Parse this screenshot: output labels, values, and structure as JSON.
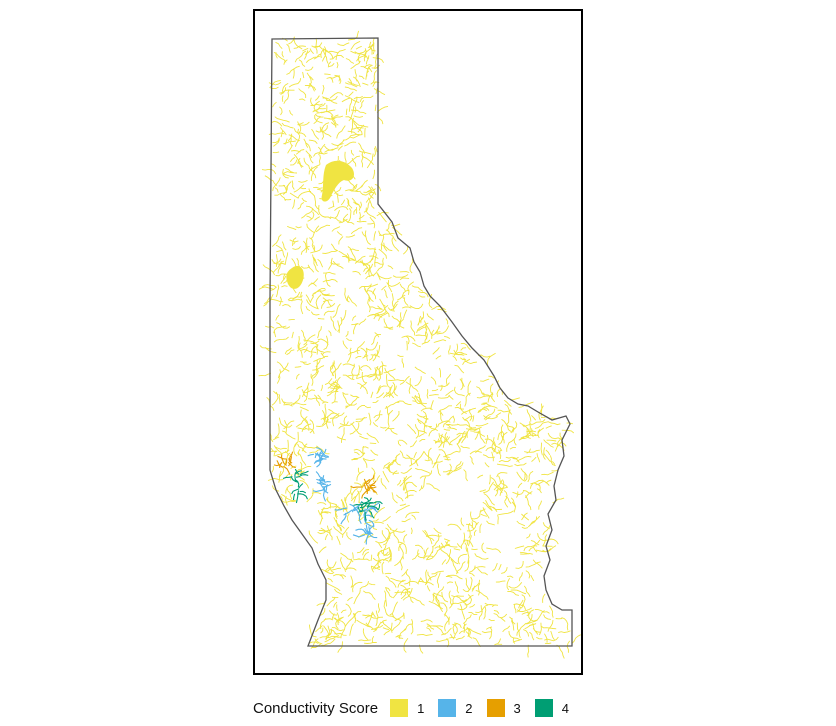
{
  "legend": {
    "title": "Conductivity Score",
    "items": [
      {
        "label": "1",
        "color": "#F0E442"
      },
      {
        "label": "2",
        "color": "#56B4E9"
      },
      {
        "label": "3",
        "color": "#E69F00"
      },
      {
        "label": "4",
        "color": "#009E73"
      }
    ]
  },
  "colors": {
    "outline": "#555555",
    "frame": "#000000",
    "lake": "#F0E442"
  }
}
